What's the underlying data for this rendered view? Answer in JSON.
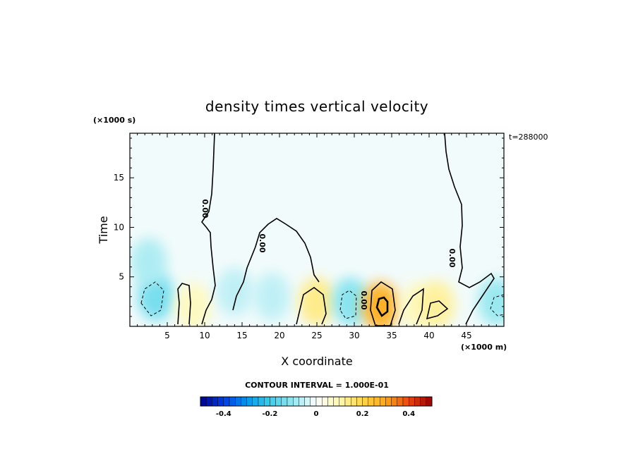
{
  "chart_data": {
    "type": "heatmap",
    "title": "density times vertical velocity",
    "xlabel": "X coordinate",
    "ylabel": "Time",
    "x_units": "(×1000 m)",
    "y_units": "(×1000 s)",
    "time_label": "t=288000",
    "xlim": [
      0,
      50
    ],
    "ylim": [
      0,
      19.5
    ],
    "x_ticks": [
      5,
      10,
      15,
      20,
      25,
      30,
      35,
      40,
      45
    ],
    "y_ticks": [
      5,
      10,
      15
    ],
    "contour_interval_text": "CONTOUR INTERVAL = 1.000E-01",
    "contour_labels": [
      "0.00",
      "0.00",
      "0.00",
      "0.00"
    ],
    "colorbar": {
      "min": -0.5,
      "max": 0.5,
      "ticks": [
        -0.4,
        -0.2,
        0,
        0.2,
        0.4
      ],
      "tick_labels": [
        "-0.4",
        "-0.2",
        "0",
        "0.2",
        "0.4"
      ]
    },
    "features": [
      {
        "x": 3.5,
        "t": 3.0,
        "value": -0.14
      },
      {
        "x": 2.5,
        "t": 6.5,
        "value": -0.08
      },
      {
        "x": 8.5,
        "t": 2.0,
        "value": 0.08
      },
      {
        "x": 14,
        "t": 3.5,
        "value": -0.06
      },
      {
        "x": 19,
        "t": 3.0,
        "value": -0.06
      },
      {
        "x": 25,
        "t": 2.5,
        "value": 0.14
      },
      {
        "x": 29.5,
        "t": 2.5,
        "value": -0.12
      },
      {
        "x": 33.5,
        "t": 2.0,
        "value": 0.28
      },
      {
        "x": 38.5,
        "t": 2.0,
        "value": 0.08
      },
      {
        "x": 41,
        "t": 2.2,
        "value": 0.12
      },
      {
        "x": 49,
        "t": 2.5,
        "value": -0.1
      }
    ]
  }
}
